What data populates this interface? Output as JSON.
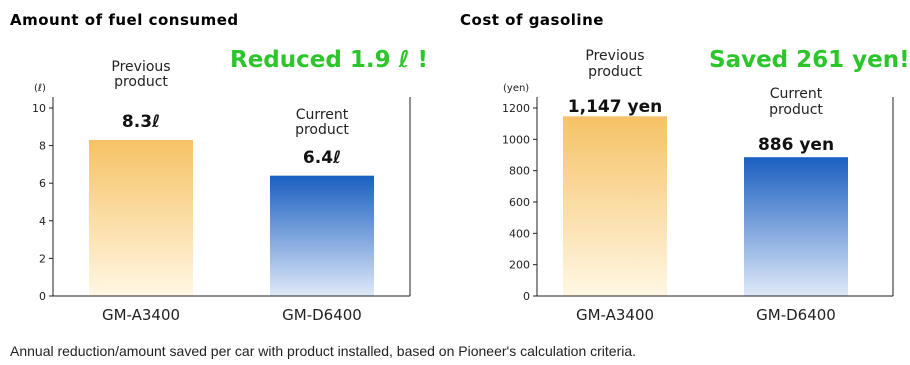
{
  "chart_data": [
    {
      "type": "bar",
      "title": "Amount of fuel consumed",
      "unit": "(ℓ)",
      "ylim": [
        0,
        10
      ],
      "ticks": [
        0,
        2,
        4,
        6,
        8,
        10
      ],
      "categories": [
        "GM-A3400",
        "GM-D6400"
      ],
      "values": [
        8.3,
        6.4
      ],
      "data_labels": [
        "8.3ℓ",
        "6.4ℓ"
      ],
      "product_labels": [
        [
          "Previous",
          "product"
        ],
        [
          "Current",
          "product"
        ]
      ],
      "highlight": "Reduced 1.9 ℓ !"
    },
    {
      "type": "bar",
      "title": "Cost of gasoline",
      "unit": "(yen)",
      "ylim": [
        0,
        1200
      ],
      "ticks": [
        0,
        200,
        400,
        600,
        800,
        1000,
        1200
      ],
      "categories": [
        "GM-A3400",
        "GM-D6400"
      ],
      "values": [
        1147,
        886
      ],
      "data_labels": [
        "1,147 yen",
        "886 yen"
      ],
      "product_labels": [
        [
          "Previous",
          "product"
        ],
        [
          "Current",
          "product"
        ]
      ],
      "highlight": "Saved 261 yen!"
    }
  ],
  "colors": {
    "previous_top": "#f6c266",
    "previous_bottom": "#fff7e4",
    "current_top": "#1a5fc0",
    "current_bottom": "#dfe9f8",
    "highlight": "#2cc52c"
  },
  "footnote": "Annual reduction/amount saved per car with product installed, based on Pioneer's calculation criteria."
}
